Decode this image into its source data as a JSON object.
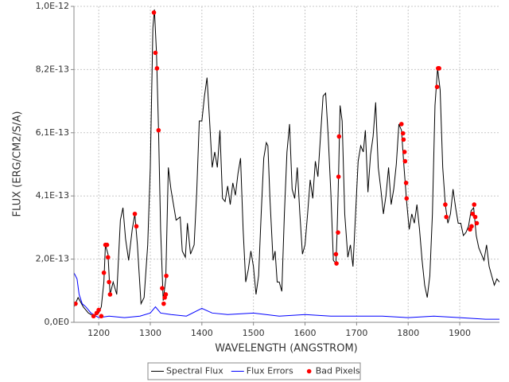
{
  "chart_data": {
    "type": "line",
    "x_label": "WAVELENGTH (ANGSTROM)",
    "y_label": "FLUX (ERG/CM2/S/A)",
    "xlim": [
      1152,
      1977
    ],
    "ylim": [
      0,
      1.02e-12
    ],
    "xticks": [
      1200,
      1300,
      1400,
      1500,
      1600,
      1700,
      1800,
      1900
    ],
    "yticks": [
      {
        "value": 0,
        "label": "0,0E0"
      },
      {
        "value": 2.04e-13,
        "label": "2,0E-13"
      },
      {
        "value": 4.08e-13,
        "label": "4,1E-13"
      },
      {
        "value": 6.12e-13,
        "label": "6,1E-13"
      },
      {
        "value": 8.16e-13,
        "label": "8,2E-13"
      },
      {
        "value": 1.02e-12,
        "label": "1,0E-12"
      }
    ],
    "grid": true,
    "legend": "bottom",
    "series": [
      {
        "name": "Spectral Flux",
        "color": "#000000",
        "type": "line",
        "x": [
          1152,
          1160,
          1170,
          1180,
          1190,
          1200,
          1205,
          1210,
          1213,
          1218,
          1222,
          1228,
          1235,
          1242,
          1247,
          1252,
          1258,
          1265,
          1270,
          1275,
          1282,
          1288,
          1295,
          1300,
          1305,
          1308,
          1312,
          1316,
          1320,
          1325,
          1330,
          1335,
          1340,
          1345,
          1350,
          1358,
          1362,
          1368,
          1372,
          1378,
          1385,
          1390,
          1395,
          1400,
          1405,
          1410,
          1415,
          1420,
          1425,
          1430,
          1435,
          1440,
          1445,
          1450,
          1455,
          1460,
          1465,
          1470,
          1475,
          1480,
          1485,
          1490,
          1495,
          1500,
          1505,
          1510,
          1515,
          1520,
          1525,
          1528,
          1532,
          1538,
          1542,
          1546,
          1550,
          1555,
          1560,
          1565,
          1570,
          1575,
          1580,
          1585,
          1590,
          1595,
          1600,
          1605,
          1610,
          1615,
          1620,
          1625,
          1630,
          1635,
          1640,
          1645,
          1650,
          1655,
          1660,
          1662,
          1665,
          1668,
          1672,
          1677,
          1683,
          1688,
          1693,
          1698,
          1703,
          1708,
          1713,
          1717,
          1722,
          1727,
          1732,
          1737,
          1742,
          1747,
          1752,
          1757,
          1762,
          1767,
          1772,
          1777,
          1782,
          1787,
          1792,
          1797,
          1802,
          1807,
          1812,
          1817,
          1822,
          1827,
          1832,
          1837,
          1842,
          1847,
          1852,
          1857,
          1862,
          1867,
          1872,
          1877,
          1882,
          1887,
          1892,
          1897,
          1902,
          1907,
          1912,
          1917,
          1922,
          1927,
          1932,
          1937,
          1942,
          1947,
          1952,
          1957,
          1962,
          1967,
          1972,
          1977
        ],
        "values": [
          5e-14,
          8e-14,
          5e-14,
          3e-14,
          2e-14,
          3e-14,
          5e-14,
          1.3e-13,
          2.5e-13,
          2.2e-13,
          9e-14,
          1.3e-13,
          9e-14,
          3.3e-13,
          3.7e-13,
          2.7e-13,
          2e-13,
          3e-13,
          3.5e-13,
          2.5e-13,
          6e-14,
          8e-14,
          2.5e-13,
          5e-13,
          9.5e-13,
          1.01e-12,
          8.7e-13,
          6.2e-13,
          3e-13,
          7e-14,
          1.4e-13,
          5e-13,
          4.3e-13,
          3.8e-13,
          3.3e-13,
          3.4e-13,
          2.3e-13,
          2.1e-13,
          3.2e-13,
          2.2e-13,
          2.5e-13,
          4.2e-13,
          6.5e-13,
          6.5e-13,
          7.3e-13,
          7.9e-13,
          6.5e-13,
          5e-13,
          5.5e-13,
          5e-13,
          6.2e-13,
          4e-13,
          3.9e-13,
          4.4e-13,
          3.8e-13,
          4.5e-13,
          4.1e-13,
          4.8e-13,
          5.3e-13,
          3e-13,
          1.3e-13,
          1.7e-13,
          2.3e-13,
          1.8e-13,
          9e-14,
          1.5e-13,
          3.5e-13,
          5.3e-13,
          5.8e-13,
          5.7e-13,
          4e-13,
          2e-13,
          2.3e-13,
          1.3e-13,
          1.3e-13,
          1e-13,
          3.5e-13,
          5.5e-13,
          6.4e-13,
          4.3e-13,
          4e-13,
          5e-13,
          3.5e-13,
          2.2e-13,
          2.5e-13,
          3.5e-13,
          4.6e-13,
          4e-13,
          5.2e-13,
          4.7e-13,
          6e-13,
          7.3e-13,
          7.4e-13,
          6e-13,
          4.2e-13,
          2e-13,
          1.9e-13,
          2.8e-13,
          4.7e-13,
          7e-13,
          6.5e-13,
          3.5e-13,
          2.1e-13,
          2.5e-13,
          1.8e-13,
          3.5e-13,
          5.2e-13,
          5.7e-13,
          5.5e-13,
          6.2e-13,
          4.2e-13,
          5.4e-13,
          6e-13,
          7.1e-13,
          5e-13,
          4.3e-13,
          3.5e-13,
          4.1e-13,
          5e-13,
          3.8e-13,
          4.3e-13,
          5.1e-13,
          6.4e-13,
          6.2e-13,
          5e-13,
          3.9e-13,
          3e-13,
          3.5e-13,
          3.2e-13,
          3.8e-13,
          3e-13,
          2e-13,
          1.2e-13,
          8e-14,
          1.5e-13,
          3.5e-13,
          7e-13,
          8.2e-13,
          7.5e-13,
          5e-13,
          3.8e-13,
          3.2e-13,
          3.5e-13,
          4.3e-13,
          3.7e-13,
          3.2e-13,
          3.2e-13,
          2.8e-13,
          2.9e-13,
          3.1e-13,
          3.6e-13,
          3.7e-13,
          2.8e-13,
          2.4e-13,
          2.2e-13,
          2e-13,
          2.5e-13,
          1.8e-13,
          1.5e-13,
          1.2e-13,
          1.4e-13,
          1.3e-13
        ]
      },
      {
        "name": "Flux Errors",
        "color": "#0000ff",
        "type": "line",
        "x": [
          1152,
          1158,
          1162,
          1168,
          1175,
          1185,
          1200,
          1220,
          1250,
          1280,
          1300,
          1310,
          1320,
          1340,
          1370,
          1400,
          1420,
          1450,
          1500,
          1550,
          1600,
          1650,
          1700,
          1750,
          1800,
          1850,
          1900,
          1950,
          1977
        ],
        "values": [
          1.6e-13,
          1.4e-13,
          9e-14,
          6e-14,
          5e-14,
          3e-14,
          1.5e-14,
          2e-14,
          1.5e-14,
          2e-14,
          3e-14,
          5e-14,
          3e-14,
          2.5e-14,
          2e-14,
          4.5e-14,
          3e-14,
          2.5e-14,
          3e-14,
          2e-14,
          2.5e-14,
          2e-14,
          2e-14,
          2e-14,
          1.5e-14,
          2e-14,
          1.5e-14,
          1e-14,
          1e-14
        ]
      },
      {
        "name": "Bad Pixels",
        "color": "#ff0000",
        "type": "scatter",
        "x": [
          1155,
          1190,
          1196,
          1200,
          1205,
          1210,
          1213,
          1216,
          1218,
          1220,
          1222,
          1270,
          1273,
          1307,
          1310,
          1313,
          1316,
          1323,
          1326,
          1328,
          1330,
          1331,
          1660,
          1661,
          1664,
          1665,
          1666,
          1787,
          1790,
          1791,
          1793,
          1794,
          1796,
          1797,
          1856,
          1858,
          1860,
          1872,
          1874,
          1920,
          1923,
          1925,
          1928,
          1930,
          1933
        ],
        "values": [
          6e-14,
          2e-14,
          3e-14,
          4e-14,
          2e-14,
          1.6e-13,
          2.5e-13,
          2.5e-13,
          2.1e-13,
          1.3e-13,
          9e-14,
          3.5e-13,
          3.1e-13,
          1e-12,
          8.7e-13,
          8.2e-13,
          6.2e-13,
          1.1e-13,
          6e-14,
          8e-14,
          9e-14,
          1.5e-13,
          2.2e-13,
          1.9e-13,
          2.9e-13,
          4.7e-13,
          6e-13,
          6.4e-13,
          6.1e-13,
          5.9e-13,
          5.5e-13,
          5.2e-13,
          4.5e-13,
          4e-13,
          7.6e-13,
          8.2e-13,
          8.2e-13,
          3.8e-13,
          3.4e-13,
          3e-13,
          3.1e-13,
          3.5e-13,
          3.8e-13,
          3.4e-13,
          3.2e-13
        ]
      }
    ]
  }
}
